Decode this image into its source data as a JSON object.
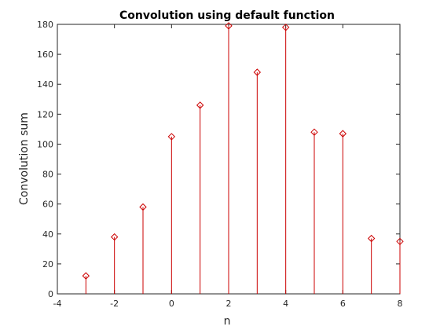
{
  "chart_data": {
    "type": "stem",
    "title": "Convolution using default function",
    "xlabel": "n",
    "ylabel": "Convolution sum",
    "xlim": [
      -4,
      8
    ],
    "ylim": [
      0,
      180
    ],
    "xticks": [
      -4,
      -2,
      0,
      2,
      4,
      6,
      8
    ],
    "yticks": [
      0,
      20,
      40,
      60,
      80,
      100,
      120,
      140,
      160,
      180
    ],
    "grid": false,
    "box": true,
    "series": [
      {
        "color": "#cc0000",
        "marker": "diamond-open",
        "x": [
          -3,
          -2,
          -1,
          0,
          1,
          2,
          3,
          4,
          5,
          6,
          7,
          8
        ],
        "y": [
          12,
          38,
          58,
          105,
          126,
          179,
          148,
          178,
          108,
          107,
          37,
          35
        ]
      }
    ]
  }
}
